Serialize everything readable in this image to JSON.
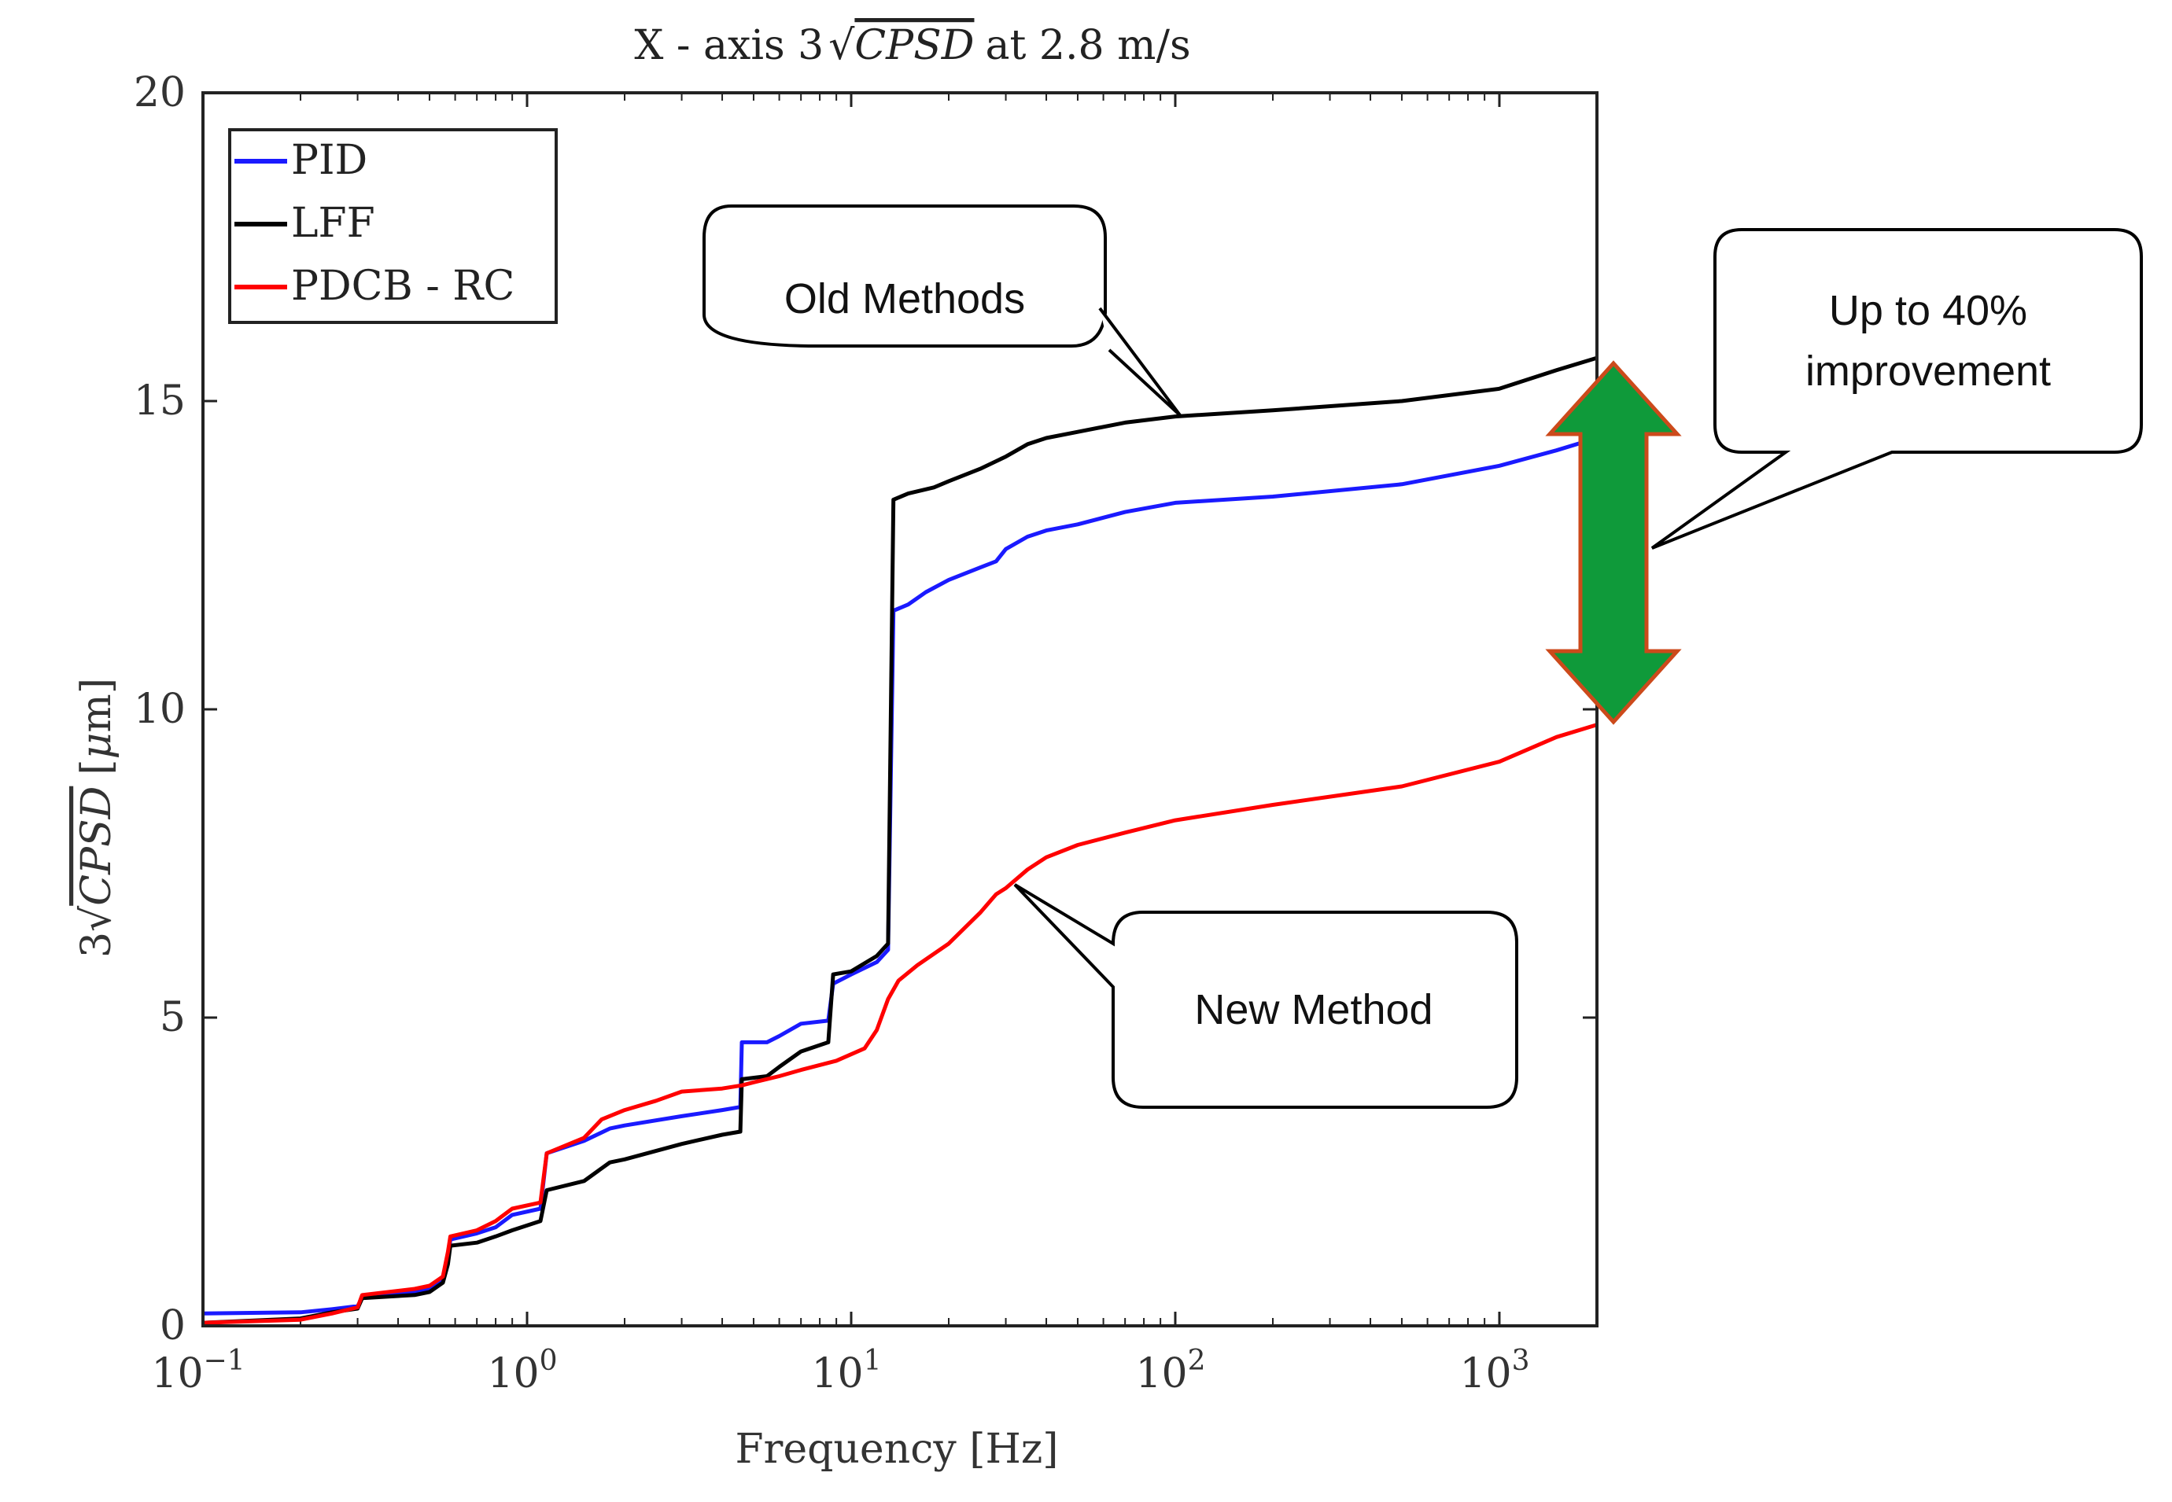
{
  "chart_data": {
    "type": "line",
    "title": {
      "prefix": "X - axis 3",
      "sqrt_term": "CPSD",
      "suffix": "at 2.8 m/s"
    },
    "xlabel": "Frequency [Hz]",
    "ylabel": {
      "prefix": "3",
      "sqrt_term": "CPSD",
      "unit_open": "[",
      "unit_mu": "μ",
      "unit_rest": "m]"
    },
    "x_scale": "log",
    "xlim": [
      0.1,
      2000
    ],
    "ylim": [
      0,
      20
    ],
    "x_ticks": [
      {
        "value": 0.1,
        "base": "10",
        "exp": "−1"
      },
      {
        "value": 1,
        "base": "10",
        "exp": "0"
      },
      {
        "value": 10,
        "base": "10",
        "exp": "1"
      },
      {
        "value": 100,
        "base": "10",
        "exp": "2"
      },
      {
        "value": 1000,
        "base": "10",
        "exp": "3"
      }
    ],
    "y_ticks": [
      {
        "value": 0,
        "label": "0"
      },
      {
        "value": 5,
        "label": "5"
      },
      {
        "value": 10,
        "label": "10"
      },
      {
        "value": 15,
        "label": "15"
      },
      {
        "value": 20,
        "label": "20"
      }
    ],
    "grid": false,
    "legend_position": "top-left",
    "series": [
      {
        "name": "PID",
        "color": "#1a1aff",
        "points": [
          [
            0.1,
            0.2
          ],
          [
            0.2,
            0.22
          ],
          [
            0.25,
            0.27
          ],
          [
            0.3,
            0.32
          ],
          [
            0.31,
            0.45
          ],
          [
            0.45,
            0.55
          ],
          [
            0.5,
            0.6
          ],
          [
            0.55,
            0.75
          ],
          [
            0.57,
            1.1
          ],
          [
            0.58,
            1.4
          ],
          [
            0.7,
            1.5
          ],
          [
            0.8,
            1.6
          ],
          [
            0.9,
            1.8
          ],
          [
            1.1,
            1.9
          ],
          [
            1.15,
            2.8
          ],
          [
            1.5,
            3.0
          ],
          [
            1.8,
            3.2
          ],
          [
            2.0,
            3.25
          ],
          [
            3.0,
            3.4
          ],
          [
            4.0,
            3.5
          ],
          [
            4.55,
            3.55
          ],
          [
            4.6,
            4.6
          ],
          [
            5.5,
            4.6
          ],
          [
            6.0,
            4.7
          ],
          [
            7.0,
            4.9
          ],
          [
            8.5,
            4.95
          ],
          [
            8.8,
            5.55
          ],
          [
            10,
            5.7
          ],
          [
            12,
            5.9
          ],
          [
            13,
            6.1
          ],
          [
            13.5,
            11.6
          ],
          [
            15,
            11.7
          ],
          [
            17,
            11.9
          ],
          [
            20,
            12.1
          ],
          [
            25,
            12.3
          ],
          [
            28,
            12.4
          ],
          [
            30,
            12.6
          ],
          [
            35,
            12.8
          ],
          [
            40,
            12.9
          ],
          [
            50,
            13.0
          ],
          [
            70,
            13.2
          ],
          [
            100,
            13.35
          ],
          [
            200,
            13.45
          ],
          [
            500,
            13.65
          ],
          [
            1000,
            13.95
          ],
          [
            1500,
            14.2
          ],
          [
            2000,
            14.4
          ]
        ]
      },
      {
        "name": "LFF",
        "color": "#000000",
        "points": [
          [
            0.1,
            0.05
          ],
          [
            0.2,
            0.12
          ],
          [
            0.25,
            0.22
          ],
          [
            0.3,
            0.28
          ],
          [
            0.31,
            0.45
          ],
          [
            0.45,
            0.5
          ],
          [
            0.5,
            0.55
          ],
          [
            0.55,
            0.7
          ],
          [
            0.57,
            1.0
          ],
          [
            0.58,
            1.3
          ],
          [
            0.7,
            1.35
          ],
          [
            0.8,
            1.45
          ],
          [
            0.9,
            1.55
          ],
          [
            1.1,
            1.7
          ],
          [
            1.15,
            2.2
          ],
          [
            1.5,
            2.35
          ],
          [
            1.8,
            2.65
          ],
          [
            2.0,
            2.7
          ],
          [
            3.0,
            2.95
          ],
          [
            4.0,
            3.1
          ],
          [
            4.55,
            3.15
          ],
          [
            4.6,
            4.0
          ],
          [
            5.5,
            4.05
          ],
          [
            6.0,
            4.2
          ],
          [
            7.0,
            4.45
          ],
          [
            8.5,
            4.6
          ],
          [
            8.8,
            5.7
          ],
          [
            10,
            5.75
          ],
          [
            12,
            6.0
          ],
          [
            13,
            6.2
          ],
          [
            13.5,
            13.4
          ],
          [
            15,
            13.5
          ],
          [
            18,
            13.6
          ],
          [
            20,
            13.7
          ],
          [
            25,
            13.9
          ],
          [
            30,
            14.1
          ],
          [
            35,
            14.3
          ],
          [
            40,
            14.4
          ],
          [
            50,
            14.5
          ],
          [
            70,
            14.65
          ],
          [
            100,
            14.75
          ],
          [
            200,
            14.85
          ],
          [
            500,
            15.0
          ],
          [
            1000,
            15.2
          ],
          [
            1500,
            15.5
          ],
          [
            2000,
            15.7
          ]
        ]
      },
      {
        "name": "PDCB - RC",
        "color": "#ff0000",
        "points": [
          [
            0.1,
            0.05
          ],
          [
            0.2,
            0.1
          ],
          [
            0.25,
            0.2
          ],
          [
            0.3,
            0.3
          ],
          [
            0.31,
            0.5
          ],
          [
            0.45,
            0.6
          ],
          [
            0.5,
            0.65
          ],
          [
            0.55,
            0.8
          ],
          [
            0.57,
            1.2
          ],
          [
            0.58,
            1.45
          ],
          [
            0.7,
            1.55
          ],
          [
            0.8,
            1.7
          ],
          [
            0.9,
            1.9
          ],
          [
            1.1,
            2.0
          ],
          [
            1.15,
            2.8
          ],
          [
            1.5,
            3.05
          ],
          [
            1.7,
            3.35
          ],
          [
            2.0,
            3.5
          ],
          [
            2.5,
            3.65
          ],
          [
            3.0,
            3.8
          ],
          [
            4.0,
            3.85
          ],
          [
            4.6,
            3.9
          ],
          [
            5.0,
            3.95
          ],
          [
            6.0,
            4.05
          ],
          [
            7.0,
            4.15
          ],
          [
            9.0,
            4.3
          ],
          [
            11,
            4.5
          ],
          [
            12,
            4.8
          ],
          [
            13,
            5.3
          ],
          [
            14,
            5.6
          ],
          [
            16,
            5.85
          ],
          [
            20,
            6.2
          ],
          [
            25,
            6.7
          ],
          [
            28,
            7.0
          ],
          [
            30,
            7.1
          ],
          [
            35,
            7.4
          ],
          [
            40,
            7.6
          ],
          [
            50,
            7.8
          ],
          [
            70,
            8.0
          ],
          [
            100,
            8.2
          ],
          [
            200,
            8.45
          ],
          [
            500,
            8.75
          ],
          [
            1000,
            9.15
          ],
          [
            1500,
            9.55
          ],
          [
            2000,
            9.75
          ]
        ]
      }
    ],
    "annotations": {
      "old": "Old Methods",
      "new": "New Method",
      "improvement_line1": "Up to 40%",
      "improvement_line2": "improvement"
    },
    "arrow_color": "#0f9a3a",
    "arrow_outline": "#cc4a1b"
  }
}
